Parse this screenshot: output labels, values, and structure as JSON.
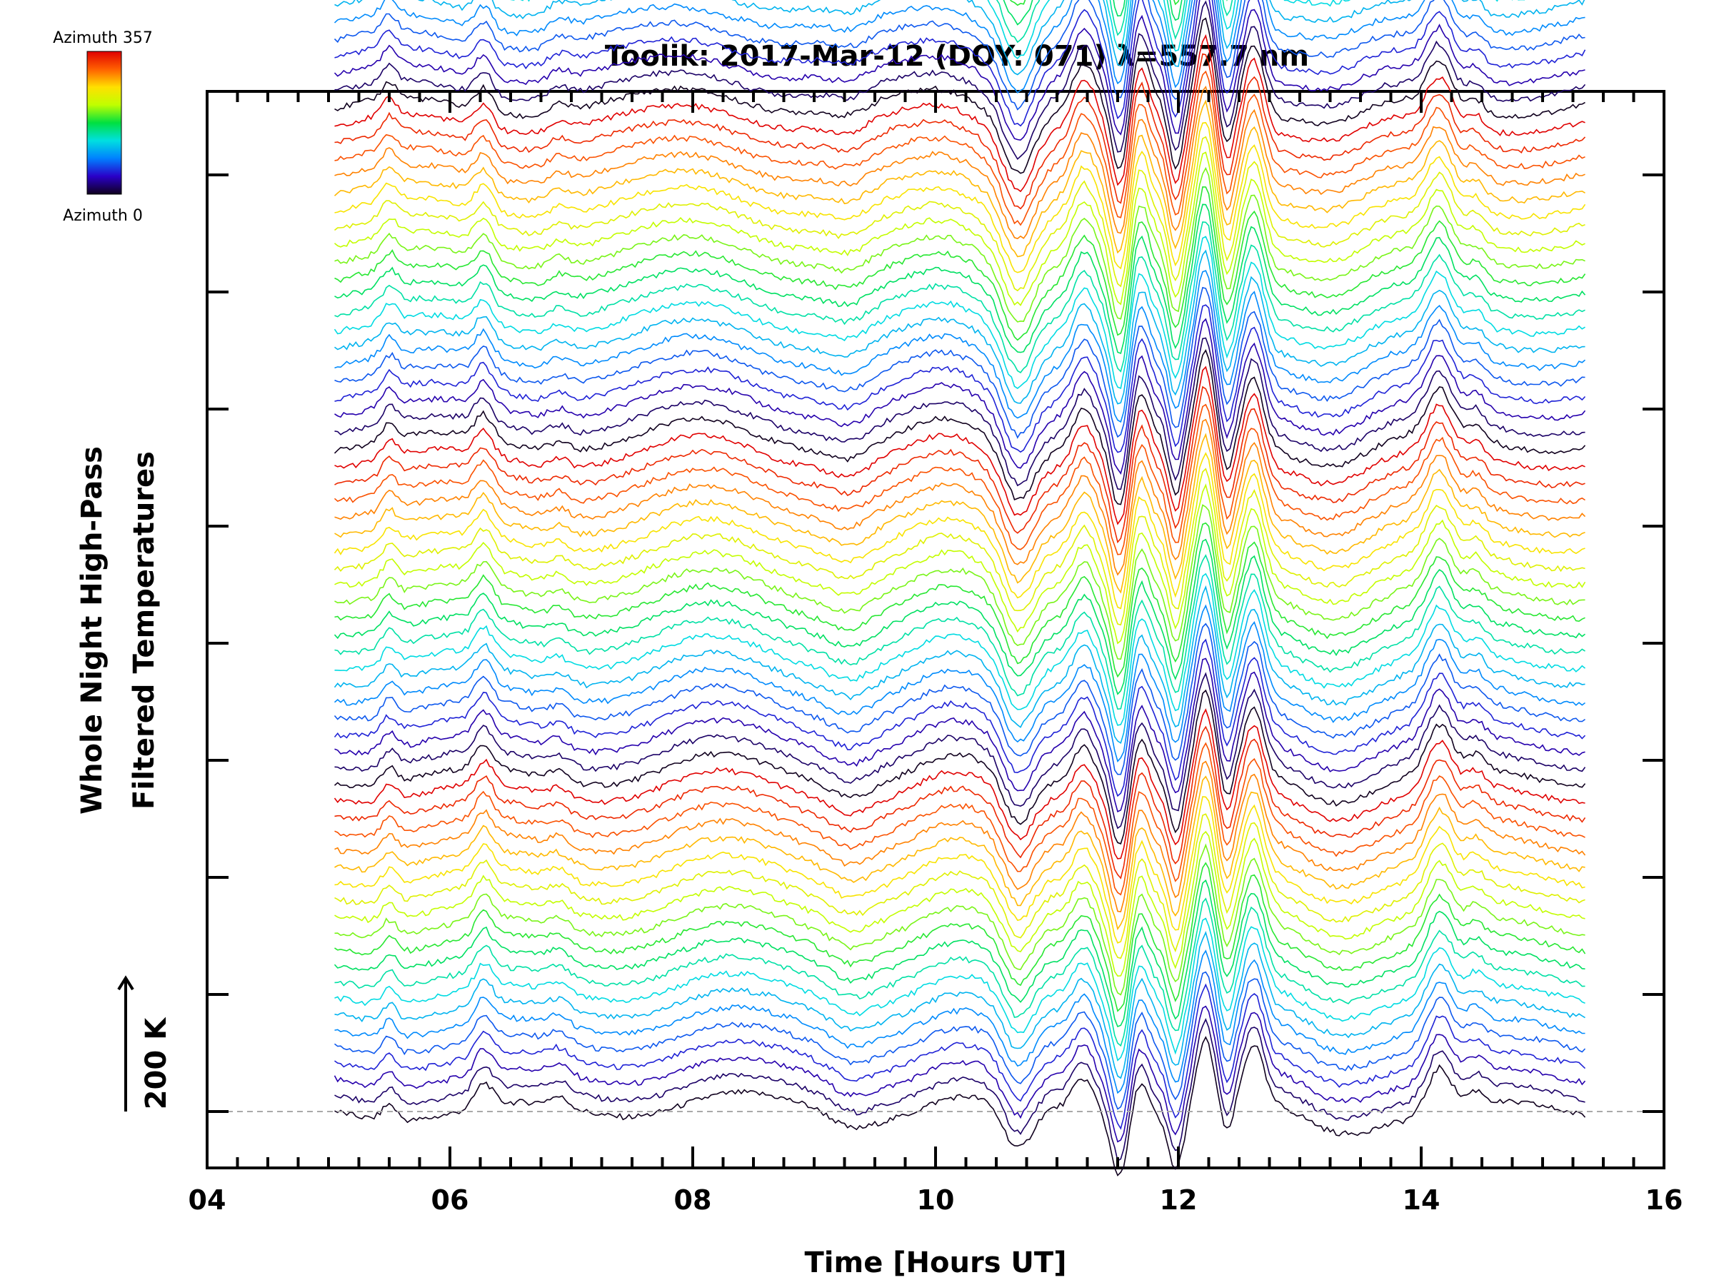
{
  "chart_data": {
    "type": "line",
    "title": "Toolik: 2017-Mar-12 (DOY: 071) λ=557.7 nm",
    "xlabel": "Time [Hours UT]",
    "ylabel_line1": "Whole Night High-Pass",
    "ylabel_line2": "Filtered Temperatures",
    "xlim": [
      4,
      16
    ],
    "x_ticks": [
      "04",
      "06",
      "08",
      "10",
      "12",
      "14",
      "16"
    ],
    "data_x_range": [
      5.05,
      15.35
    ],
    "scale_bar_label": "200 K",
    "scale_bar_kelvin": 200,
    "colorbar": {
      "top_label": "Azimuth 357",
      "bottom_label": "Azimuth 0",
      "azimuth_min": 0,
      "azimuth_max": 357,
      "colors": [
        "#10001e",
        "#2a00c8",
        "#0080ff",
        "#00e0e0",
        "#00e040",
        "#c0ff00",
        "#ffe000",
        "#ff6000",
        "#e00000"
      ]
    },
    "series_count": 140,
    "series_offset_kelvin": 14.3,
    "azimuth_cycle_length": 20,
    "baseline_kelvin": 0,
    "baseline_style": "dashed"
  }
}
